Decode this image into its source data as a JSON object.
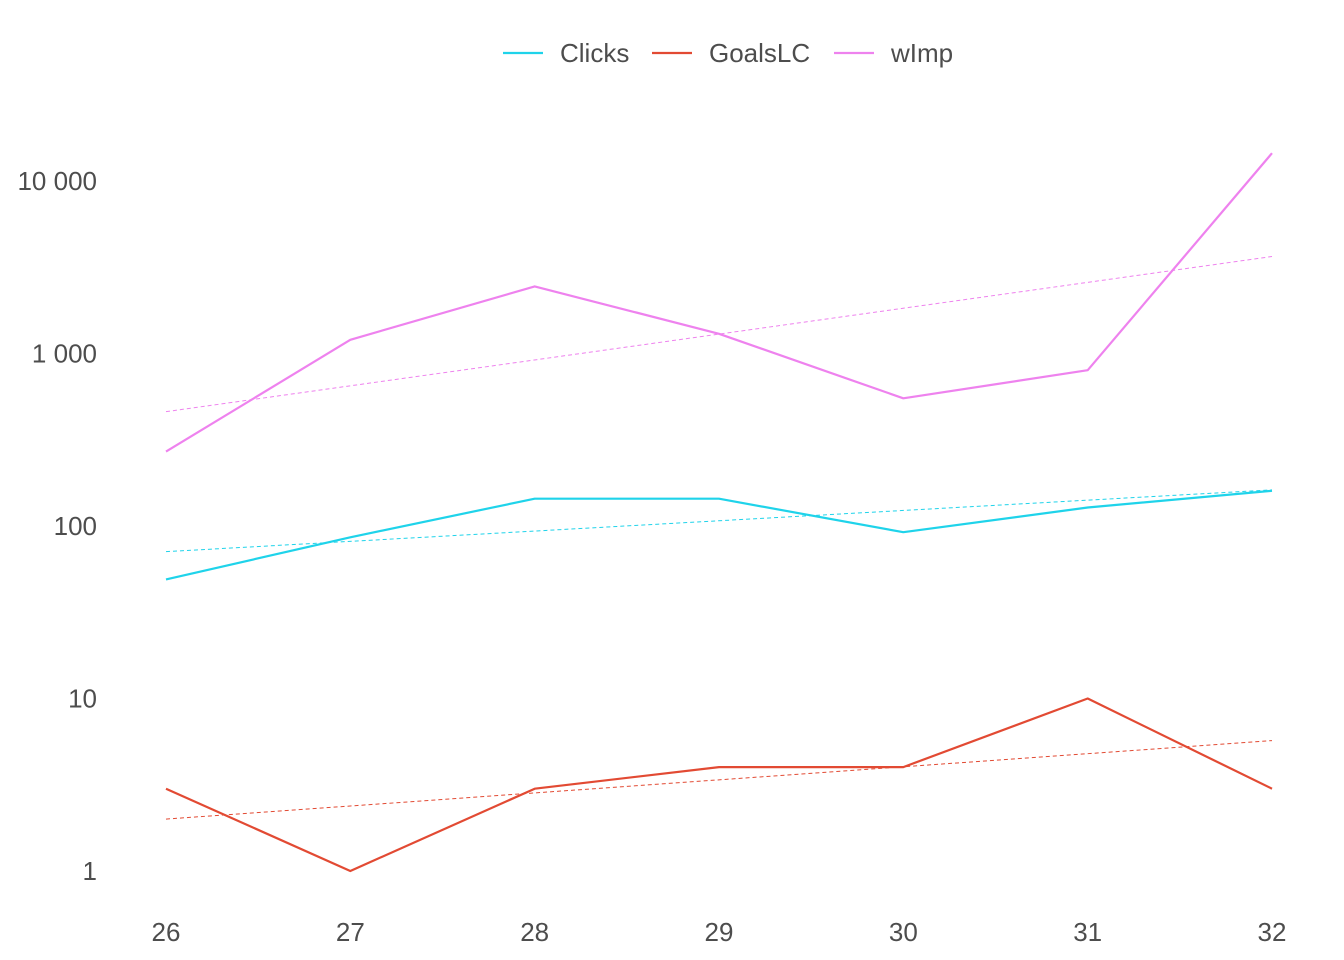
{
  "chart_data": {
    "type": "line",
    "title": "",
    "xlabel": "",
    "ylabel": "",
    "y_scale": "log10",
    "ylim": [
      0.6,
      20000
    ],
    "xlim": [
      26,
      32
    ],
    "grid": false,
    "legend_position": "top",
    "x": [
      26,
      27,
      28,
      29,
      30,
      31,
      32
    ],
    "x_tick_labels": [
      "26",
      "27",
      "28",
      "29",
      "30",
      "31",
      "32"
    ],
    "y_ticks": [
      1,
      10,
      100,
      1000,
      10000
    ],
    "y_tick_labels": [
      "1",
      "10",
      "100",
      "1 000",
      "10 000"
    ],
    "series": [
      {
        "name": "Clicks",
        "color": "#1fd3ea",
        "values": [
          49,
          86,
          144,
          144,
          92,
          128,
          160
        ],
        "trend": [
          71,
          162
        ]
      },
      {
        "name": "GoalsLC",
        "color": "#e24a33",
        "values": [
          3,
          1,
          3,
          4,
          4,
          10,
          3
        ],
        "trend": [
          2.0,
          5.7
        ]
      },
      {
        "name": "wImp",
        "color": "#ee82ee",
        "values": [
          270,
          1200,
          2450,
          1300,
          550,
          800,
          14500
        ],
        "trend": [
          460,
          3650
        ]
      }
    ]
  }
}
